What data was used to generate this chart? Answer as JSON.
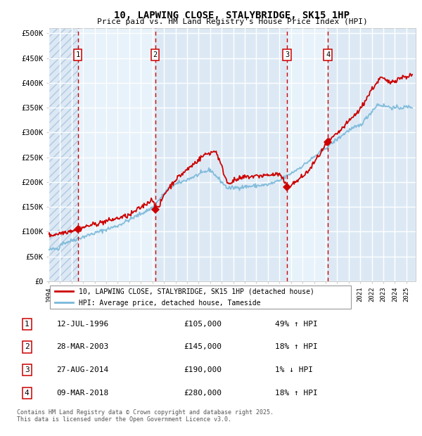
{
  "title": "10, LAPWING CLOSE, STALYBRIDGE, SK15 1HP",
  "subtitle": "Price paid vs. HM Land Registry's House Price Index (HPI)",
  "ylabel_ticks": [
    "£0",
    "£50K",
    "£100K",
    "£150K",
    "£200K",
    "£250K",
    "£300K",
    "£350K",
    "£400K",
    "£450K",
    "£500K"
  ],
  "ytick_vals": [
    0,
    50000,
    100000,
    150000,
    200000,
    250000,
    300000,
    350000,
    400000,
    450000,
    500000
  ],
  "ylim": [
    0,
    510000
  ],
  "xlim_start": 1994.0,
  "xlim_end": 2025.8,
  "hpi_color": "#7ab8d9",
  "price_color": "#cc0000",
  "sale_marker_color": "#cc0000",
  "bg_color": "#dce9f5",
  "grid_color": "#ffffff",
  "legend1_label": "10, LAPWING CLOSE, STALYBRIDGE, SK15 1HP (detached house)",
  "legend2_label": "HPI: Average price, detached house, Tameside",
  "sales": [
    {
      "num": 1,
      "date": "12-JUL-1996",
      "price": 105000,
      "pct": "49%",
      "dir": "↑",
      "year": 1996.53
    },
    {
      "num": 2,
      "date": "28-MAR-2003",
      "price": 145000,
      "pct": "18%",
      "dir": "↑",
      "year": 2003.24
    },
    {
      "num": 3,
      "date": "27-AUG-2014",
      "price": 190000,
      "pct": "1%",
      "dir": "↓",
      "year": 2014.65
    },
    {
      "num": 4,
      "date": "09-MAR-2018",
      "price": 280000,
      "pct": "18%",
      "dir": "↑",
      "year": 2018.19
    }
  ],
  "footer": "Contains HM Land Registry data © Crown copyright and database right 2025.\nThis data is licensed under the Open Government Licence v3.0.",
  "hatch_xlim": [
    1994.0,
    1996.53
  ],
  "shade_regions": [
    [
      1994.0,
      1996.53
    ],
    [
      1996.53,
      2003.24
    ],
    [
      2003.24,
      2014.65
    ],
    [
      2014.65,
      2018.19
    ],
    [
      2018.19,
      2025.8
    ]
  ],
  "shade_colors": [
    "#dce9f5",
    "#e8f2fa"
  ],
  "xtick_years": [
    1994,
    1995,
    1996,
    1997,
    1998,
    1999,
    2000,
    2001,
    2002,
    2003,
    2004,
    2005,
    2006,
    2007,
    2008,
    2009,
    2010,
    2011,
    2012,
    2013,
    2014,
    2015,
    2016,
    2017,
    2018,
    2019,
    2020,
    2021,
    2022,
    2023,
    2024,
    2025
  ]
}
